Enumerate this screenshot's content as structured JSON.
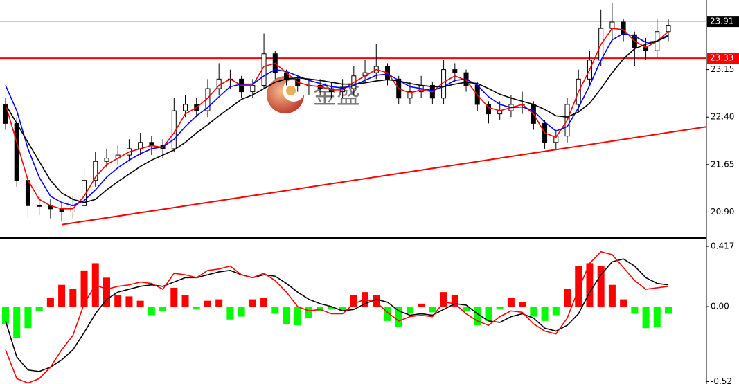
{
  "chart_data": [
    {
      "type": "candlestick",
      "watermark": "金盛",
      "open": [
        22.6,
        22.3,
        21.4,
        21.0,
        21.0,
        20.95,
        20.9,
        21.0,
        21.4,
        21.7,
        21.75,
        21.8,
        21.9,
        22.0,
        21.95,
        21.9,
        22.5,
        22.6,
        22.5,
        22.85,
        23.0,
        23.0,
        22.8,
        22.9,
        23.4,
        23.1,
        23.0,
        22.9,
        22.9,
        22.85,
        22.8,
        22.85,
        23.05,
        23.1,
        23.2,
        23.0,
        22.7,
        22.8,
        22.9,
        22.7,
        23.15,
        23.1,
        22.9,
        22.6,
        22.45,
        22.5,
        22.6,
        22.6,
        22.3,
        22.0,
        22.1,
        22.6,
        23.0,
        23.3,
        23.8,
        23.9,
        23.7,
        23.5,
        23.45,
        23.75
      ],
      "high": [
        22.7,
        22.4,
        21.5,
        21.15,
        21.1,
        21.05,
        21.15,
        21.6,
        21.85,
        21.9,
        21.95,
        22.05,
        22.15,
        22.1,
        22.05,
        22.7,
        22.75,
        22.7,
        23.0,
        23.25,
        23.15,
        23.05,
        23.0,
        23.72,
        23.45,
        23.15,
        23.05,
        23.0,
        23.0,
        22.95,
        23.0,
        23.2,
        23.3,
        23.55,
        23.25,
        23.05,
        22.95,
        23.05,
        22.95,
        23.3,
        23.25,
        23.15,
        22.95,
        22.65,
        22.65,
        22.75,
        22.8,
        22.65,
        22.35,
        22.2,
        22.7,
        23.15,
        23.45,
        24.1,
        24.2,
        23.95,
        23.75,
        23.65,
        23.95,
        23.95
      ],
      "low": [
        22.2,
        21.3,
        20.8,
        20.85,
        20.8,
        20.75,
        20.8,
        20.95,
        21.3,
        21.6,
        21.65,
        21.7,
        21.8,
        21.8,
        21.75,
        21.85,
        22.4,
        22.4,
        22.4,
        22.75,
        22.85,
        22.7,
        22.7,
        22.85,
        23.0,
        22.9,
        22.8,
        22.75,
        22.75,
        22.7,
        22.7,
        22.75,
        22.95,
        23.0,
        22.9,
        22.6,
        22.6,
        22.7,
        22.6,
        22.6,
        22.95,
        22.8,
        22.5,
        22.3,
        22.35,
        22.4,
        22.45,
        22.2,
        21.9,
        21.9,
        22.0,
        22.5,
        22.9,
        23.2,
        23.6,
        23.6,
        23.2,
        23.3,
        23.35,
        23.6
      ],
      "close": [
        22.3,
        21.4,
        21.0,
        21.0,
        20.95,
        20.9,
        21.0,
        21.4,
        21.7,
        21.75,
        21.8,
        21.9,
        22.0,
        21.95,
        21.9,
        22.5,
        22.6,
        22.5,
        22.85,
        23.0,
        23.0,
        22.8,
        22.9,
        23.4,
        23.1,
        23.0,
        22.9,
        22.9,
        22.85,
        22.8,
        22.85,
        23.05,
        23.1,
        23.2,
        23.0,
        22.7,
        22.8,
        22.9,
        22.7,
        23.15,
        23.1,
        22.9,
        22.6,
        22.45,
        22.5,
        22.6,
        22.6,
        22.3,
        22.0,
        22.1,
        22.6,
        23.0,
        23.3,
        23.8,
        23.9,
        23.7,
        23.5,
        23.45,
        23.75,
        23.85
      ],
      "candle_color": "#000000",
      "series": [
        {
          "color": "#ff0000",
          "values": [
            22.6,
            22.0,
            21.4,
            21.1,
            21.0,
            20.95,
            20.95,
            21.15,
            21.45,
            21.65,
            21.75,
            21.85,
            21.9,
            21.95,
            21.92,
            22.15,
            22.45,
            22.55,
            22.7,
            22.9,
            23.0,
            22.9,
            22.9,
            23.2,
            23.25,
            23.1,
            22.95,
            22.9,
            22.88,
            22.83,
            22.83,
            22.95,
            23.05,
            23.15,
            23.1,
            22.85,
            22.78,
            22.83,
            22.8,
            22.95,
            23.05,
            22.98,
            22.75,
            22.55,
            22.5,
            22.55,
            22.6,
            22.45,
            22.15,
            22.08,
            22.35,
            22.8,
            23.15,
            23.55,
            23.8,
            23.78,
            23.6,
            23.5,
            23.6,
            23.75
          ]
        },
        {
          "color": "#0000ff",
          "values": [
            22.9,
            22.5,
            21.9,
            21.45,
            21.15,
            21.05,
            21.0,
            21.08,
            21.25,
            21.45,
            21.6,
            21.72,
            21.82,
            21.9,
            21.93,
            22.05,
            22.25,
            22.42,
            22.55,
            22.72,
            22.88,
            22.92,
            22.92,
            23.05,
            23.15,
            23.12,
            23.05,
            22.98,
            22.93,
            22.88,
            22.86,
            22.9,
            22.98,
            23.06,
            23.08,
            22.98,
            22.88,
            22.85,
            22.82,
            22.88,
            22.98,
            23.0,
            22.9,
            22.72,
            22.6,
            22.55,
            22.56,
            22.5,
            22.32,
            22.18,
            22.25,
            22.55,
            22.9,
            23.3,
            23.62,
            23.72,
            23.68,
            23.58,
            23.6,
            23.7
          ]
        },
        {
          "color": "#000000",
          "values": [
            22.6,
            22.3,
            22.0,
            21.7,
            21.4,
            21.2,
            21.1,
            21.05,
            21.1,
            21.25,
            21.38,
            21.5,
            21.62,
            21.72,
            21.8,
            21.88,
            22.0,
            22.15,
            22.28,
            22.42,
            22.55,
            22.68,
            22.75,
            22.85,
            22.95,
            23.0,
            23.02,
            23.0,
            22.98,
            22.95,
            22.92,
            22.92,
            22.94,
            22.97,
            22.99,
            22.97,
            22.93,
            22.9,
            22.88,
            22.88,
            22.92,
            22.95,
            22.93,
            22.85,
            22.76,
            22.7,
            22.65,
            22.6,
            22.52,
            22.42,
            22.4,
            22.48,
            22.62,
            22.85,
            23.1,
            23.32,
            23.48,
            23.55,
            23.6,
            23.68
          ]
        }
      ],
      "levels": [
        {
          "value": 23.91,
          "color": "#000000"
        },
        {
          "value": 23.33,
          "color": "#ff0000"
        }
      ],
      "trendline": {
        "x": [
          5,
          62.5
        ],
        "y": [
          20.7,
          22.25
        ],
        "color": "#ff0000"
      },
      "ylim": [
        20.5,
        24.25
      ],
      "yticks": [
        {
          "value": 20.9,
          "label": "20.90"
        },
        21.65,
        {
          "value": 22.4,
          "label": "22.40"
        },
        23.15
      ]
    },
    {
      "type": "macd",
      "histogram": [
        -0.12,
        -0.22,
        -0.15,
        -0.03,
        0.06,
        0.15,
        0.12,
        0.25,
        0.3,
        0.2,
        0.08,
        0.07,
        0.04,
        -0.06,
        -0.03,
        0.13,
        0.08,
        -0.02,
        0.04,
        0.05,
        -0.09,
        -0.07,
        0.05,
        0.06,
        -0.05,
        -0.12,
        -0.13,
        -0.08,
        -0.03,
        -0.02,
        -0.03,
        0.08,
        0.1,
        0.08,
        -0.1,
        -0.14,
        -0.05,
        0.02,
        -0.04,
        0.1,
        0.08,
        -0.03,
        -0.13,
        -0.1,
        -0.02,
        0.06,
        0.03,
        -0.07,
        -0.1,
        -0.06,
        0.12,
        0.28,
        0.3,
        0.28,
        0.15,
        0.05,
        -0.05,
        -0.15,
        -0.14,
        -0.05
      ],
      "up_color": "#ff0000",
      "down_color": "#00ff00",
      "series": [
        {
          "color": "#000000",
          "values": [
            -0.1,
            -0.35,
            -0.44,
            -0.45,
            -0.42,
            -0.37,
            -0.3,
            -0.18,
            -0.05,
            0.05,
            0.1,
            0.12,
            0.14,
            0.15,
            0.14,
            0.17,
            0.2,
            0.2,
            0.22,
            0.24,
            0.25,
            0.22,
            0.2,
            0.22,
            0.21,
            0.16,
            0.1,
            0.05,
            0.02,
            0.0,
            -0.03,
            -0.02,
            0.02,
            0.05,
            0.03,
            -0.03,
            -0.06,
            -0.05,
            -0.06,
            -0.02,
            0.02,
            0.01,
            -0.05,
            -0.1,
            -0.11,
            -0.07,
            -0.05,
            -0.08,
            -0.15,
            -0.17,
            -0.13,
            -0.05,
            0.1,
            0.22,
            0.31,
            0.33,
            0.28,
            0.2,
            0.16,
            0.15
          ]
        },
        {
          "color": "#ff0000",
          "values": [
            -0.3,
            -0.5,
            -0.53,
            -0.5,
            -0.42,
            -0.3,
            -0.2,
            0.02,
            0.15,
            0.12,
            0.14,
            0.15,
            0.17,
            0.16,
            0.12,
            0.23,
            0.22,
            0.2,
            0.25,
            0.26,
            0.28,
            0.22,
            0.2,
            0.23,
            0.18,
            0.1,
            0.0,
            -0.03,
            -0.02,
            -0.05,
            -0.05,
            0.02,
            0.05,
            0.03,
            -0.04,
            -0.1,
            -0.07,
            -0.06,
            -0.07,
            0.03,
            0.02,
            -0.05,
            -0.1,
            -0.13,
            -0.07,
            -0.03,
            -0.04,
            -0.12,
            -0.17,
            -0.19,
            -0.08,
            0.12,
            0.3,
            0.38,
            0.36,
            0.27,
            0.18,
            0.12,
            0.13,
            0.14
          ]
        }
      ],
      "ylim": [
        -0.537,
        0.47
      ],
      "yticks": [
        0.417,
        {
          "value": 0,
          "label": "0.00"
        },
        -0.52
      ]
    }
  ]
}
